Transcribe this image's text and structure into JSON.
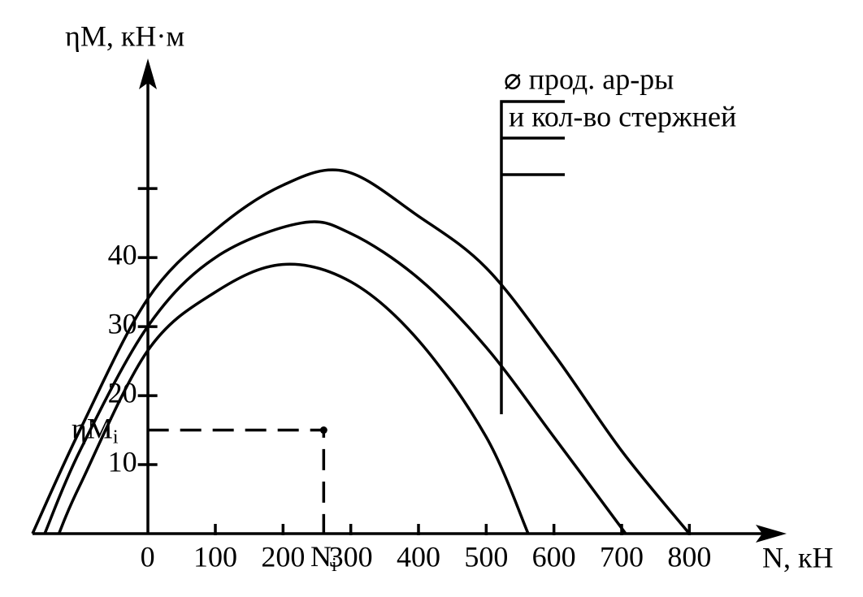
{
  "chart_data": {
    "type": "line",
    "y_axis_label": "ηM, кН·м",
    "x_axis_label": "N, кН",
    "xlim": [
      -170,
      940
    ],
    "ylim": [
      0,
      68.5
    ],
    "xticks": [
      0,
      100,
      200,
      300,
      400,
      500,
      600,
      700,
      800
    ],
    "yticks": [
      10,
      20,
      30,
      40
    ],
    "minor_yticks": [
      50
    ],
    "color": "#000000",
    "series": [
      {
        "x": [
          -170,
          -100,
          0,
          100,
          200,
          292,
          400,
          500,
          600,
          700,
          800
        ],
        "values": [
          0,
          15,
          34,
          44,
          50.5,
          52.5,
          46,
          38.5,
          26,
          12,
          0
        ]
      },
      {
        "x": [
          -152,
          -100,
          0,
          100,
          226,
          300,
          400,
          500,
          600,
          706
        ],
        "values": [
          0,
          12,
          30,
          40,
          45,
          43.5,
          37,
          27,
          14,
          0
        ]
      },
      {
        "x": [
          -131,
          -100,
          0,
          100,
          199,
          300,
          400,
          500,
          562
        ],
        "values": [
          0,
          7,
          26.5,
          35,
          39,
          36.5,
          28,
          14,
          0
        ]
      }
    ],
    "point": {
      "x": 260,
      "y": 15,
      "x_label": "N",
      "x_label_sub": "i",
      "y_label": "ηM",
      "y_label_sub": "i"
    },
    "annotation": {
      "line1": "⌀ прод. ар-ры",
      "line2": "и кол-во стержней"
    }
  }
}
